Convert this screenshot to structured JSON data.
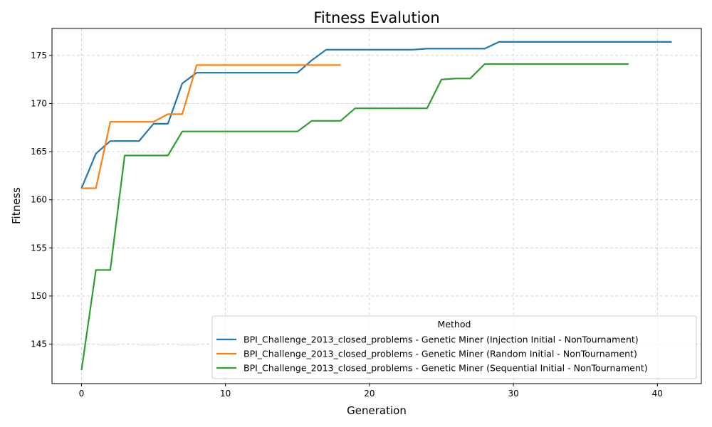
{
  "chart_data": {
    "type": "line",
    "title": "Fitness Evalution",
    "xlabel": "Generation",
    "ylabel": "Fitness",
    "xlim": [
      -2.05,
      43.05
    ],
    "ylim": [
      140.9,
      177.8
    ],
    "xticks": [
      0,
      10,
      20,
      30,
      40
    ],
    "yticks": [
      145,
      150,
      155,
      160,
      165,
      170,
      175
    ],
    "grid": true,
    "legend": {
      "title": "Method",
      "placement": "lower-right"
    },
    "series": [
      {
        "name": "BPI_Challenge_2013_closed_problems - Genetic Miner (Injection Initial - NonTournament)",
        "color": "#1f77b4",
        "x": [
          0,
          1,
          2,
          3,
          4,
          5,
          6,
          7,
          8,
          9,
          10,
          11,
          12,
          13,
          14,
          15,
          16,
          17,
          18,
          19,
          20,
          21,
          22,
          23,
          24,
          25,
          26,
          27,
          28,
          29,
          30,
          31,
          32,
          33,
          34,
          35,
          36,
          37,
          38,
          39,
          40,
          41
        ],
        "y": [
          161.2,
          164.8,
          166.1,
          166.1,
          166.1,
          167.9,
          167.9,
          172.1,
          173.2,
          173.2,
          173.2,
          173.2,
          173.2,
          173.2,
          173.2,
          173.2,
          174.5,
          175.6,
          175.6,
          175.6,
          175.6,
          175.6,
          175.6,
          175.6,
          175.7,
          175.7,
          175.7,
          175.7,
          175.7,
          176.4,
          176.4,
          176.4,
          176.4,
          176.4,
          176.4,
          176.4,
          176.4,
          176.4,
          176.4,
          176.4,
          176.4,
          176.4
        ]
      },
      {
        "name": "BPI_Challenge_2013_closed_problems - Genetic Miner (Random Initial - NonTournament)",
        "color": "#ff7f0e",
        "x": [
          0,
          1,
          2,
          3,
          4,
          5,
          6,
          7,
          8,
          9,
          10,
          11,
          12,
          13,
          14,
          15,
          16,
          17,
          18
        ],
        "y": [
          161.2,
          161.2,
          168.1,
          168.1,
          168.1,
          168.1,
          168.9,
          168.9,
          174.0,
          174.0,
          174.0,
          174.0,
          174.0,
          174.0,
          174.0,
          174.0,
          174.0,
          174.0,
          174.0
        ]
      },
      {
        "name": "BPI_Challenge_2013_closed_problems - Genetic Miner (Sequential Initial - NonTournament)",
        "color": "#2ca02c",
        "x": [
          0,
          1,
          2,
          3,
          4,
          5,
          6,
          7,
          8,
          9,
          10,
          11,
          12,
          13,
          14,
          15,
          16,
          17,
          18,
          19,
          20,
          21,
          22,
          23,
          24,
          25,
          26,
          27,
          28,
          29,
          30,
          31,
          32,
          33,
          34,
          35,
          36,
          37,
          38
        ],
        "y": [
          142.3,
          152.7,
          152.7,
          164.6,
          164.6,
          164.6,
          164.6,
          167.1,
          167.1,
          167.1,
          167.1,
          167.1,
          167.1,
          167.1,
          167.1,
          167.1,
          168.2,
          168.2,
          168.2,
          169.5,
          169.5,
          169.5,
          169.5,
          169.5,
          169.5,
          172.5,
          172.6,
          172.6,
          174.1,
          174.1,
          174.1,
          174.1,
          174.1,
          174.1,
          174.1,
          174.1,
          174.1,
          174.1,
          174.1
        ]
      }
    ]
  }
}
